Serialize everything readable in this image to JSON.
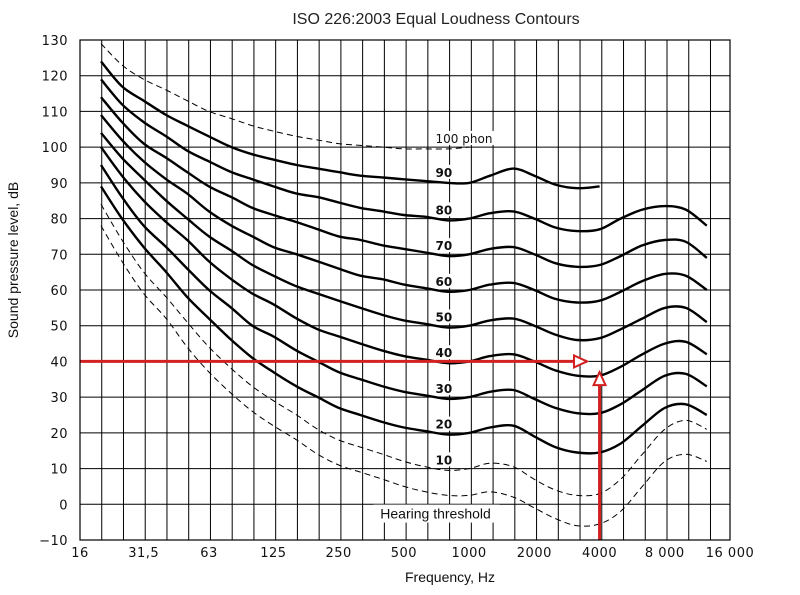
{
  "chart_data": {
    "type": "line",
    "title": "ISO 226:2003  Equal Loudness Contours",
    "xlabel": "Frequency, Hz",
    "ylabel": "Sound pressure level, dB",
    "xscale": "log",
    "xlim": [
      16,
      16000
    ],
    "ylim": [
      -10,
      130
    ],
    "x_tick_labels": [
      "16",
      "31,5",
      "63",
      "125",
      "250",
      "500",
      "1000",
      "2000",
      "4000",
      "8 000",
      "16 000"
    ],
    "x_tick_values": [
      16,
      31.5,
      63,
      125,
      250,
      500,
      1000,
      2000,
      4000,
      8000,
      16000
    ],
    "y_tick_labels": [
      "130",
      "120",
      "110",
      "100",
      "90",
      "80",
      "70",
      "60",
      "50",
      "40",
      "30",
      "20",
      "10",
      "0",
      "−10"
    ],
    "y_tick_values": [
      130,
      120,
      110,
      100,
      90,
      80,
      70,
      60,
      50,
      40,
      30,
      20,
      10,
      0,
      -10
    ],
    "grid": true,
    "series": [
      {
        "name": "Hearing threshold",
        "label": "Hearing threshold",
        "style": "dashed",
        "x": [
          20,
          25,
          31.5,
          40,
          50,
          63,
          80,
          100,
          125,
          160,
          200,
          250,
          315,
          400,
          500,
          630,
          800,
          1000,
          1250,
          1600,
          2000,
          2500,
          3150,
          4000,
          5000,
          6300,
          8000,
          10000,
          12500
        ],
        "y": [
          78,
          68,
          59,
          52,
          44,
          37,
          31,
          26,
          22,
          18,
          14,
          11,
          9,
          7,
          5,
          3.5,
          2.5,
          2.5,
          3.5,
          2,
          -1,
          -4,
          -6,
          -5.5,
          -2,
          5,
          12,
          14,
          12
        ]
      },
      {
        "name": "10",
        "label": "10",
        "style": "dashed",
        "x": [
          20,
          25,
          31.5,
          40,
          50,
          63,
          80,
          100,
          125,
          160,
          200,
          250,
          315,
          400,
          500,
          630,
          800,
          1000,
          1250,
          1600,
          2000,
          2500,
          3150,
          4000,
          5000,
          6300,
          8000,
          10000,
          12500
        ],
        "y": [
          84,
          74,
          65,
          58,
          51,
          44,
          38,
          33,
          29,
          25,
          21,
          18,
          16,
          14,
          12,
          10.5,
          9.5,
          10,
          11.5,
          10.5,
          7,
          4,
          2.5,
          3,
          7,
          14,
          21,
          23.5,
          21
        ]
      },
      {
        "name": "20",
        "label": "20",
        "style": "solid",
        "x": [
          20,
          25,
          31.5,
          40,
          50,
          63,
          80,
          100,
          125,
          160,
          200,
          250,
          315,
          400,
          500,
          630,
          800,
          1000,
          1250,
          1600,
          2000,
          2500,
          3150,
          4000,
          5000,
          6300,
          8000,
          10000,
          12500
        ],
        "y": [
          89,
          80,
          72,
          65,
          58,
          52,
          46,
          41,
          37,
          33,
          30,
          27,
          25,
          23,
          21.5,
          20.5,
          19.5,
          20,
          21.5,
          22,
          19,
          16,
          14.5,
          14.5,
          17,
          22,
          27,
          28,
          25
        ]
      },
      {
        "name": "30",
        "label": "30",
        "style": "solid",
        "x": [
          20,
          25,
          31.5,
          40,
          50,
          63,
          80,
          100,
          125,
          160,
          200,
          250,
          315,
          400,
          500,
          630,
          800,
          1000,
          1250,
          1600,
          2000,
          2500,
          3150,
          4000,
          5000,
          6300,
          8000,
          10000,
          12500
        ],
        "y": [
          95,
          86,
          78,
          72,
          66,
          60,
          55,
          50,
          47,
          43,
          40,
          37,
          35,
          33,
          31.5,
          30.5,
          29.5,
          30,
          31.5,
          32,
          29.5,
          27,
          25.5,
          25.5,
          28,
          32,
          36,
          36.5,
          33
        ]
      },
      {
        "name": "40",
        "label": "40",
        "style": "solid",
        "x": [
          20,
          25,
          31.5,
          40,
          50,
          63,
          80,
          100,
          125,
          160,
          200,
          250,
          315,
          400,
          500,
          630,
          800,
          1000,
          1250,
          1600,
          2000,
          2500,
          3150,
          4000,
          5000,
          6300,
          8000,
          10000,
          12500
        ],
        "y": [
          100,
          92,
          85,
          79,
          74,
          68,
          63,
          59,
          56,
          52,
          49,
          47,
          45,
          43,
          41.5,
          40.5,
          39.5,
          40,
          41.5,
          42,
          40,
          37.5,
          36,
          36,
          38.5,
          42,
          45,
          45.5,
          42
        ]
      },
      {
        "name": "50",
        "label": "50",
        "style": "solid",
        "x": [
          20,
          25,
          31.5,
          40,
          50,
          63,
          80,
          100,
          125,
          160,
          200,
          250,
          315,
          400,
          500,
          630,
          800,
          1000,
          1250,
          1600,
          2000,
          2500,
          3150,
          4000,
          5000,
          6300,
          8000,
          10000,
          12500
        ],
        "y": [
          104,
          97,
          91,
          85,
          80,
          75,
          71,
          67,
          64,
          61,
          59,
          57,
          55,
          53,
          51.5,
          50.5,
          49.5,
          50,
          51.5,
          52,
          50,
          47.5,
          46,
          46.5,
          49,
          52,
          55,
          55,
          51
        ]
      },
      {
        "name": "60",
        "label": "60",
        "style": "solid",
        "x": [
          20,
          25,
          31.5,
          40,
          50,
          63,
          80,
          100,
          125,
          160,
          200,
          250,
          315,
          400,
          500,
          630,
          800,
          1000,
          1250,
          1600,
          2000,
          2500,
          3150,
          4000,
          5000,
          6300,
          8000,
          10000,
          12500
        ],
        "y": [
          109,
          102,
          96,
          91,
          87,
          82,
          78,
          75,
          72,
          70,
          68,
          66,
          64,
          63,
          61.5,
          60.5,
          59.5,
          60,
          61.5,
          62,
          60,
          57.5,
          56.5,
          57,
          59.5,
          62.5,
          64.5,
          64,
          60
        ]
      },
      {
        "name": "70",
        "label": "70",
        "style": "solid",
        "x": [
          20,
          25,
          31.5,
          40,
          50,
          63,
          80,
          100,
          125,
          160,
          200,
          250,
          315,
          400,
          500,
          630,
          800,
          1000,
          1250,
          1600,
          2000,
          2500,
          3150,
          4000,
          5000,
          6300,
          8000,
          10000,
          12500
        ],
        "y": [
          114,
          107,
          101,
          97,
          93,
          89,
          86,
          83,
          81,
          79,
          77,
          75,
          74,
          72.5,
          71.5,
          70.5,
          69.5,
          70,
          71.5,
          72,
          70,
          67.5,
          66.5,
          67,
          69.5,
          72.5,
          74,
          73.5,
          69
        ]
      },
      {
        "name": "80",
        "label": "80",
        "style": "solid",
        "x": [
          20,
          25,
          31.5,
          40,
          50,
          63,
          80,
          100,
          125,
          160,
          200,
          250,
          315,
          400,
          500,
          630,
          800,
          1000,
          1250,
          1600,
          2000,
          2500,
          3150,
          4000,
          5000,
          6300,
          8000,
          10000,
          12500
        ],
        "y": [
          119,
          112,
          107,
          103,
          99,
          96,
          93,
          91,
          89,
          87,
          86,
          84.5,
          83,
          82,
          81,
          80.5,
          79.5,
          80,
          81.5,
          82,
          80,
          77.5,
          76.5,
          77,
          80,
          82.5,
          83.5,
          82.5,
          78
        ]
      },
      {
        "name": "90",
        "label": "90",
        "style": "solid",
        "x": [
          20,
          25,
          31.5,
          40,
          50,
          63,
          80,
          100,
          125,
          160,
          200,
          250,
          315,
          400,
          500,
          630,
          800,
          1000,
          1250,
          1600,
          2000,
          2500,
          3150,
          4000
        ],
        "y": [
          124,
          117,
          113,
          109,
          106,
          103,
          100,
          98,
          96.5,
          95,
          94,
          93,
          92,
          91.5,
          91,
          90.5,
          90,
          90,
          92,
          94,
          92,
          89.5,
          88.5,
          89
        ]
      },
      {
        "name": "100 phon",
        "label": "100 phon",
        "style": "dashed",
        "x": [
          20,
          25,
          31.5,
          40,
          50,
          63,
          80,
          100,
          125,
          160,
          200,
          250,
          315,
          400,
          500,
          630,
          800,
          1000
        ],
        "y": [
          129,
          123,
          119,
          116,
          113,
          110,
          108,
          106,
          104.5,
          103,
          102,
          101,
          100.5,
          100,
          99.5,
          99.5,
          99.5,
          100
        ]
      }
    ],
    "annotations": [
      {
        "type": "arrow",
        "color": "#d32020",
        "from": {
          "x": 16,
          "y": 40
        },
        "to": {
          "x": 3500,
          "y": 40
        }
      },
      {
        "type": "arrow",
        "color": "#d32020",
        "from": {
          "x": 4000,
          "y": -10
        },
        "to": {
          "x": 4000,
          "y": 37
        }
      },
      {
        "type": "text",
        "text": "Hearing threshold",
        "x": 700,
        "y": -4
      }
    ]
  }
}
